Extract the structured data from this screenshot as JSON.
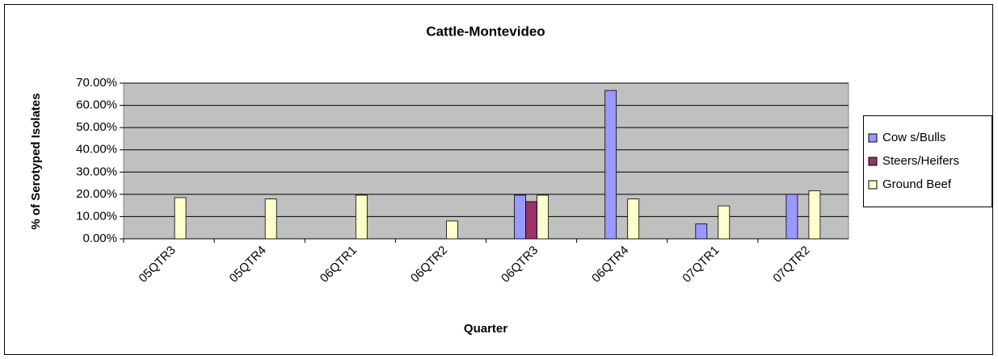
{
  "chart_data": {
    "type": "bar",
    "title": "Cattle-Montevideo",
    "x_label": "Quarter",
    "y_label": "% of Serotyped Isolates",
    "categories": [
      "05QTR3",
      "05QTR4",
      "06QTR1",
      "06QTR2",
      "06QTR3",
      "06QTR4",
      "07QTR1",
      "07QTR2"
    ],
    "series": [
      {
        "name": "Cow s/Bulls",
        "color": "#9999ff",
        "values": [
          null,
          null,
          null,
          null,
          19.6,
          66.7,
          6.7,
          20
        ]
      },
      {
        "name": "Steers/Heifers",
        "color": "#993366",
        "values": [
          null,
          null,
          null,
          null,
          16.7,
          null,
          null,
          null
        ]
      },
      {
        "name": "Ground Beef",
        "color": "#ffffcc",
        "values": [
          18.5,
          17.9,
          19.6,
          8,
          19.6,
          17.9,
          14.8,
          21.6
        ]
      }
    ],
    "ylim": [
      0,
      70
    ],
    "yticks": [
      {
        "value": 0,
        "label": "0.00%"
      },
      {
        "value": 10,
        "label": "10.00%"
      },
      {
        "value": 20,
        "label": "20.00%"
      },
      {
        "value": 30,
        "label": "30.00%"
      },
      {
        "value": 40,
        "label": "40.00%"
      },
      {
        "value": 50,
        "label": "50.00%"
      },
      {
        "value": 60,
        "label": "60.00%"
      },
      {
        "value": 70,
        "label": "70.00%"
      }
    ],
    "grid": true,
    "legend": "right"
  }
}
